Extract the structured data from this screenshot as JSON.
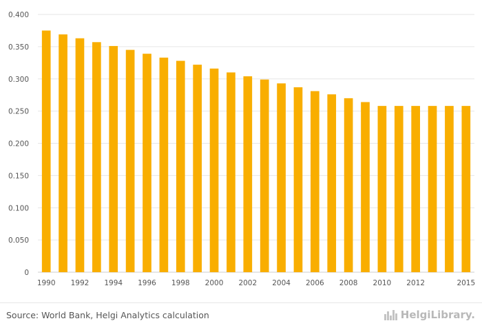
{
  "chart_data": {
    "type": "bar",
    "categories": [
      "1990",
      "1991",
      "1992",
      "1993",
      "1994",
      "1995",
      "1996",
      "1997",
      "1998",
      "1999",
      "2000",
      "2001",
      "2002",
      "2003",
      "2004",
      "2005",
      "2006",
      "2007",
      "2008",
      "2009",
      "2010",
      "2011",
      "2012",
      "2013",
      "2014",
      "2015"
    ],
    "values": [
      0.375,
      0.369,
      0.363,
      0.357,
      0.351,
      0.345,
      0.339,
      0.333,
      0.328,
      0.322,
      0.316,
      0.31,
      0.304,
      0.299,
      0.293,
      0.287,
      0.281,
      0.276,
      0.27,
      0.264,
      0.258,
      0.258,
      0.258,
      0.258,
      0.258,
      0.258
    ],
    "x_tick_labels": [
      "1990",
      "1992",
      "1994",
      "1996",
      "1998",
      "2000",
      "2002",
      "2004",
      "2006",
      "2008",
      "2010",
      "2012",
      "2015"
    ],
    "y_tick_labels": [
      "0",
      "0.050",
      "0.100",
      "0.150",
      "0.200",
      "0.250",
      "0.300",
      "0.350",
      "0.400"
    ],
    "ylim": [
      0,
      0.4
    ],
    "bar_color": "#f9ae00",
    "grid": true,
    "title": "",
    "xlabel": "",
    "ylabel": ""
  },
  "footer": {
    "source": "Source: World Bank, Helgi Analytics calculation",
    "brand": "HelgiLibrary.",
    "brand_icon": "city-skyline-icon"
  }
}
